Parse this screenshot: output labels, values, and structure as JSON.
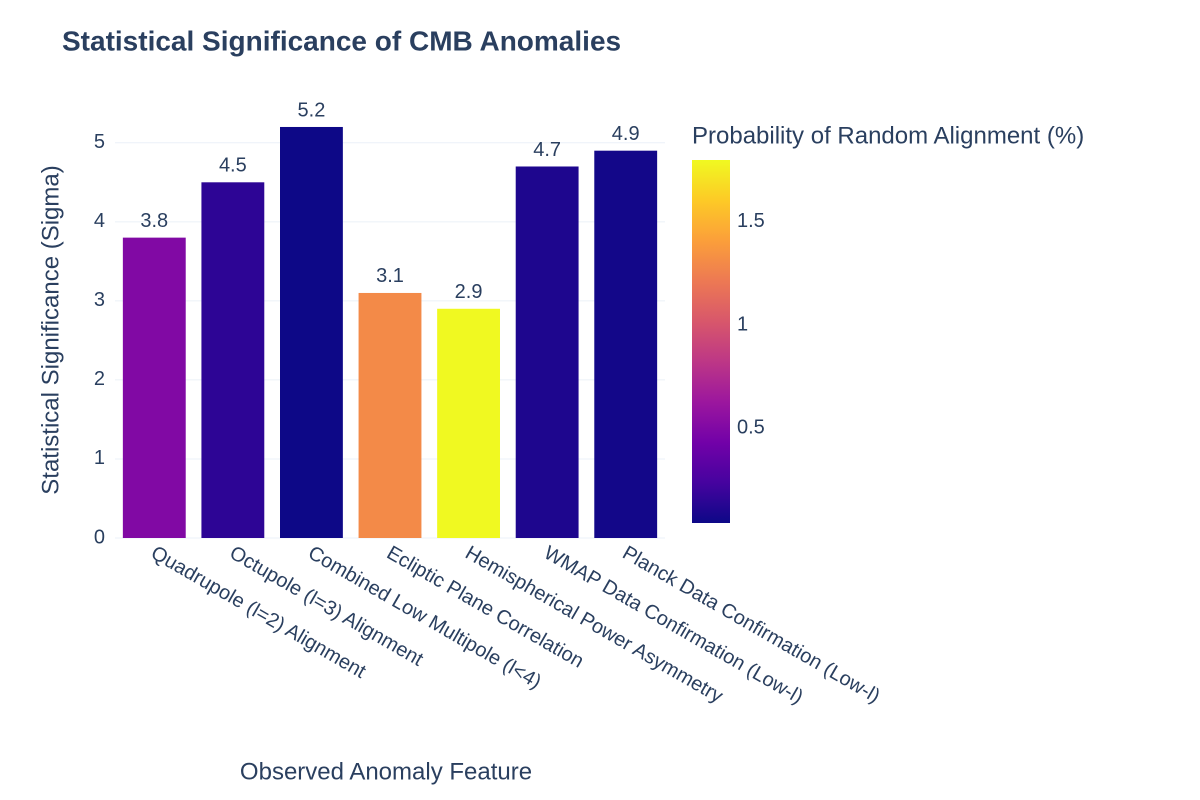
{
  "chart_data": {
    "type": "bar",
    "title": "Statistical Significance of CMB Anomalies",
    "x_label": "Observed Anomaly Feature",
    "y_label": "Statistical Significance (Sigma)",
    "categories": [
      "Quadrupole (l=2) Alignment",
      "Octupole (l=3) Alignment",
      "Combined Low Multipole (l<4)",
      "Ecliptic Plane Correlation",
      "Hemispherical Power Asymmetry",
      "WMAP Data Confirmation (Low-l)",
      "Planck Data Confirmation (Low-l)"
    ],
    "values": [
      3.8,
      4.5,
      5.2,
      3.1,
      2.9,
      4.7,
      4.9
    ],
    "color_values": [
      0.5,
      0.15,
      0.04,
      1.3,
      1.8,
      0.1,
      0.06
    ],
    "colorbar_title": "Probability of Random Alignment (%)",
    "color_lim": [
      0.04,
      1.8
    ],
    "color_ticks": [
      0.5,
      1,
      1.5
    ],
    "colorscale": [
      "#0d0887",
      "#46039f",
      "#7201a8",
      "#9c179e",
      "#bd3786",
      "#d8576b",
      "#ed7953",
      "#fb9f3a",
      "#fdca26",
      "#f0f921"
    ],
    "ylim": [
      0,
      5.44
    ],
    "yticks": [
      0,
      1,
      2,
      3,
      4,
      5
    ],
    "grid": true
  }
}
